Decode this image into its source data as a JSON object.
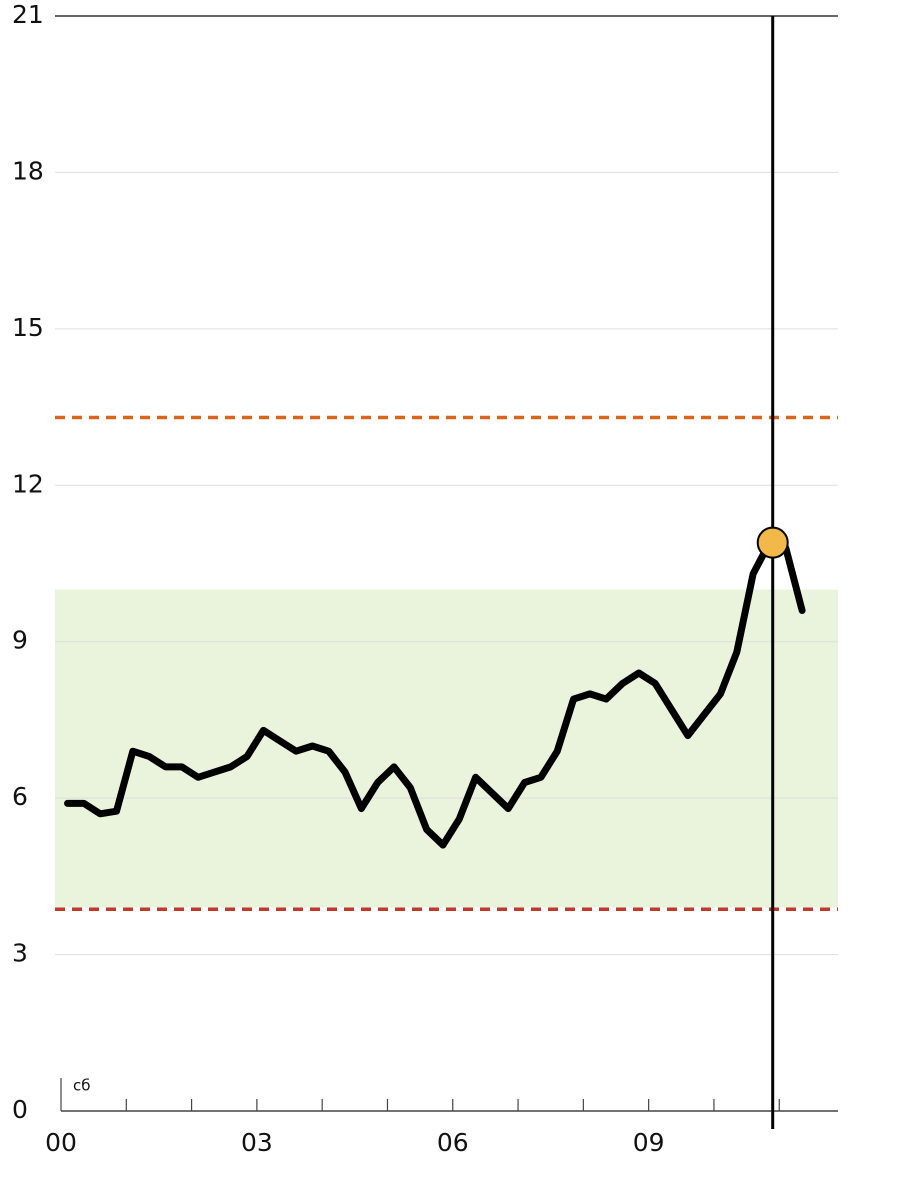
{
  "chart_data": {
    "type": "line",
    "x": [
      0.1,
      0.35,
      0.6,
      0.85,
      1.1,
      1.35,
      1.6,
      1.85,
      2.1,
      2.35,
      2.6,
      2.85,
      3.1,
      3.35,
      3.6,
      3.85,
      4.1,
      4.35,
      4.6,
      4.85,
      5.1,
      5.35,
      5.6,
      5.85,
      6.1,
      6.35,
      6.6,
      6.85,
      7.1,
      7.35,
      7.6,
      7.85,
      8.1,
      8.35,
      8.6,
      8.85,
      9.1,
      9.35,
      9.6,
      9.85,
      10.1,
      10.35,
      10.6,
      10.85,
      11.1,
      11.35
    ],
    "series": [
      {
        "color": "#000000",
        "values": [
          5.9,
          5.9,
          5.7,
          5.75,
          6.9,
          6.8,
          6.6,
          6.6,
          6.4,
          6.5,
          6.6,
          6.8,
          7.3,
          7.1,
          6.9,
          7.0,
          6.9,
          6.5,
          5.8,
          6.3,
          6.6,
          6.2,
          5.4,
          5.1,
          5.6,
          6.4,
          6.1,
          5.8,
          6.3,
          6.4,
          6.9,
          7.9,
          8.0,
          7.9,
          8.2,
          8.4,
          8.2,
          7.7,
          7.2,
          7.6,
          8.0,
          8.8,
          10.3,
          10.9,
          10.8,
          9.6
        ]
      }
    ],
    "xlim": [
      0,
      11.9
    ],
    "ylim": [
      0,
      21
    ],
    "yticks": [
      0,
      3,
      6,
      9,
      12,
      15,
      18,
      21
    ],
    "xticks": [
      {
        "value": 0,
        "label": "00"
      },
      1,
      2,
      {
        "value": 3,
        "label": "03"
      },
      4,
      5,
      {
        "value": 6,
        "label": "06"
      },
      7,
      8,
      {
        "value": 9,
        "label": "09"
      },
      10,
      11
    ],
    "day_label": "сб",
    "grid": true,
    "target_range": [
      3.9,
      10
    ],
    "target_color": "#eaf4dc",
    "thresholds": [
      {
        "value": 13.3,
        "color": "#d9641e"
      },
      {
        "value": 3.87,
        "color": "#c0392b"
      }
    ],
    "cursor": {
      "x": 10.9,
      "y": 10.9,
      "color": "#f2b94a"
    }
  }
}
